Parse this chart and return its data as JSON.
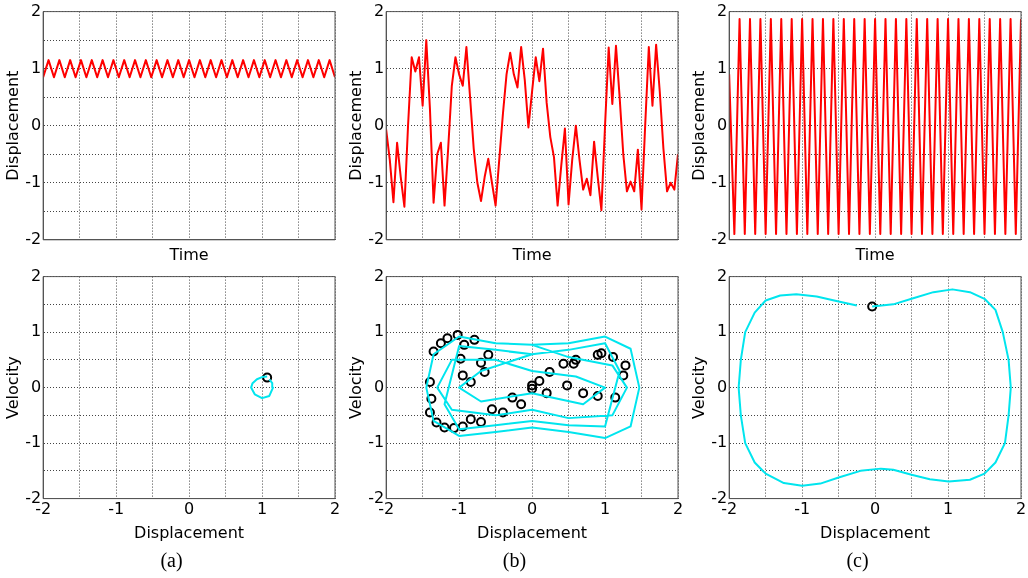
{
  "chart_data": [
    {
      "type": "line",
      "xlabel": "Time",
      "ylabel": "Displacement",
      "categories": [
        null,
        null,
        null,
        null,
        null,
        null,
        null,
        null,
        null,
        null,
        null,
        null,
        null,
        null,
        null,
        null,
        null,
        null,
        null,
        null,
        null,
        null,
        null,
        null,
        null,
        null,
        null,
        null,
        null,
        null,
        null,
        null,
        null,
        null,
        null,
        null,
        null,
        null,
        null,
        null,
        null,
        null,
        null,
        null,
        null,
        null,
        null,
        null,
        null,
        null,
        null,
        null,
        null,
        null,
        null
      ],
      "ylim": [
        -2,
        2
      ],
      "yticks": [
        -2,
        {
          "value": -1.5,
          "label": null
        },
        -1,
        {
          "value": -0.5,
          "label": null
        },
        0,
        {
          "value": 0.5,
          "label": null
        },
        1,
        {
          "value": 1.5,
          "label": null
        },
        2
      ],
      "grid": true,
      "tick_labels": "y",
      "series": [
        {
          "color": "#ff0000",
          "values": [
            0.85,
            1.15,
            0.85,
            1.15,
            0.85,
            1.15,
            0.85,
            1.15,
            0.85,
            1.15,
            0.85,
            1.15,
            0.85,
            1.15,
            0.85,
            1.15,
            0.85,
            1.15,
            0.85,
            1.15,
            0.85,
            1.15,
            0.85,
            1.15,
            0.85,
            1.15,
            0.85,
            1.15,
            0.85,
            1.15,
            0.85,
            1.15,
            0.85,
            1.15,
            0.85,
            1.15,
            0.85,
            1.15,
            0.85,
            1.15,
            0.85,
            1.15,
            0.85,
            1.15,
            0.85,
            1.15,
            0.85,
            1.15,
            0.85,
            1.15,
            0.85,
            1.15,
            0.85,
            1.15,
            0.85
          ]
        }
      ]
    },
    {
      "type": "line",
      "xlabel": "Time",
      "ylabel": "Displacement",
      "categories": [
        null,
        null,
        null,
        null,
        null,
        null,
        null,
        null,
        null,
        null,
        null,
        null,
        null,
        null,
        null,
        null,
        null,
        null,
        null,
        null,
        null,
        null,
        null,
        null,
        null,
        null,
        null,
        null,
        null,
        null,
        null,
        null,
        null,
        null,
        null,
        null,
        null,
        null,
        null,
        null,
        null,
        null,
        null,
        null,
        null,
        null,
        null,
        null,
        null,
        null,
        null,
        null,
        null,
        null,
        null,
        null,
        null,
        null,
        null,
        null,
        null,
        null,
        null,
        null,
        null,
        null,
        null,
        null,
        null,
        null,
        null,
        null,
        null,
        null,
        null,
        null,
        null,
        null,
        null,
        null,
        null
      ],
      "ylim": [
        -2,
        2
      ],
      "yticks": [
        -2,
        {
          "value": -1.5,
          "label": null
        },
        -1,
        {
          "value": -0.5,
          "label": null
        },
        0,
        {
          "value": 0.5,
          "label": null
        },
        1,
        {
          "value": 1.5,
          "label": null
        },
        2
      ],
      "grid": true,
      "tick_labels": "y",
      "series": [
        {
          "color": "#ff0000",
          "values": [
            -0.07,
            -0.6,
            -1.34,
            -0.3,
            -0.9,
            -1.42,
            0.0,
            1.2,
            0.95,
            1.2,
            0.35,
            1.5,
            0.3,
            -1.35,
            -0.5,
            -0.3,
            -1.4,
            -0.4,
            0.7,
            1.2,
            0.9,
            0.7,
            1.38,
            0.5,
            -0.4,
            -1.0,
            -1.32,
            -0.9,
            -0.58,
            -1.0,
            -1.4,
            -0.6,
            0.2,
            0.9,
            1.28,
            0.9,
            0.67,
            1.38,
            0.8,
            -0.03,
            0.6,
            1.2,
            0.78,
            1.35,
            0.4,
            -0.2,
            -0.55,
            -1.4,
            -0.7,
            -0.05,
            -1.38,
            -0.6,
            0.0,
            -0.6,
            -1.12,
            -0.93,
            -1.22,
            -0.28,
            -0.9,
            -1.48,
            0.0,
            1.37,
            0.38,
            1.4,
            0.5,
            -0.5,
            -1.15,
            -0.98,
            -1.15,
            -0.42,
            -1.47,
            0.0,
            1.38,
            0.35,
            1.42,
            0.6,
            -0.4,
            -1.15,
            -1.0,
            -1.12,
            -0.5
          ]
        }
      ]
    },
    {
      "type": "line",
      "xlabel": "Time",
      "ylabel": "Displacement",
      "categories": [
        null,
        null,
        null,
        null,
        null,
        null,
        null,
        null,
        null,
        null,
        null,
        null,
        null,
        null,
        null,
        null,
        null,
        null,
        null,
        null,
        null,
        null,
        null,
        null,
        null,
        null,
        null,
        null,
        null,
        null,
        null,
        null,
        null,
        null,
        null,
        null,
        null,
        null,
        null,
        null,
        null,
        null,
        null,
        null,
        null,
        null,
        null,
        null,
        null,
        null,
        null,
        null,
        null,
        null,
        null,
        null,
        null
      ],
      "ylim": [
        -2,
        2
      ],
      "yticks": [
        -2,
        {
          "value": -1.5,
          "label": null
        },
        -1,
        {
          "value": -0.5,
          "label": null
        },
        0,
        {
          "value": 0.5,
          "label": null
        },
        1,
        {
          "value": 1.5,
          "label": null
        },
        2
      ],
      "grid": true,
      "tick_labels": "y",
      "series": [
        {
          "color": "#ff0000",
          "values": [
            0.9,
            -1.9,
            1.87,
            -1.9,
            1.87,
            -1.9,
            1.87,
            -1.9,
            1.87,
            -1.9,
            1.87,
            -1.9,
            1.87,
            -1.9,
            1.87,
            -1.9,
            1.87,
            -1.9,
            1.87,
            -1.9,
            1.87,
            -1.9,
            1.87,
            -1.9,
            1.87,
            -1.9,
            1.87,
            -1.9,
            1.87,
            -1.9,
            1.87,
            -1.9,
            1.87,
            -1.9,
            1.87,
            -1.9,
            1.87,
            -1.9,
            1.87,
            -1.9,
            1.87,
            -1.9,
            1.87,
            -1.9,
            1.87,
            -1.9,
            1.87,
            -1.9,
            1.87,
            -1.9,
            1.87,
            -1.9,
            1.87,
            -1.9,
            1.87,
            -1.9,
            1.87
          ]
        }
      ]
    },
    {
      "type": "line",
      "xlabel": "Displacement",
      "ylabel": "Velocity",
      "xlim": [
        -2,
        2
      ],
      "xticks": [
        -2,
        {
          "value": -1.5,
          "label": null
        },
        -1,
        {
          "value": -0.5,
          "label": null
        },
        0,
        {
          "value": 0.5,
          "label": null
        },
        1,
        {
          "value": 1.5,
          "label": null
        },
        2
      ],
      "ylim": [
        -2,
        2
      ],
      "yticks": [
        -2,
        {
          "value": -1.5,
          "label": null
        },
        -1,
        {
          "value": -0.5,
          "label": null
        },
        0,
        {
          "value": 0.5,
          "label": null
        },
        1,
        {
          "value": 1.5,
          "label": null
        },
        2
      ],
      "grid": true,
      "annotations": [
        "(a)"
      ],
      "series": [
        {
          "type": "line",
          "color": "#00e5ee",
          "marker": "none",
          "x": [
            1.07,
            1.0,
            0.93,
            0.87,
            0.85,
            0.9,
            1.0,
            1.1,
            1.15,
            1.14,
            1.1
          ],
          "values": [
            0.2,
            0.19,
            0.15,
            0.08,
            0.0,
            -0.12,
            -0.19,
            -0.15,
            0.0,
            0.08,
            0.15
          ]
        },
        {
          "type": "scatter",
          "color": "#000000",
          "marker": "circle",
          "x": [
            1.07
          ],
          "values": [
            0.18
          ]
        }
      ]
    },
    {
      "type": "line",
      "xlabel": "Displacement",
      "ylabel": "Velocity",
      "xlim": [
        -2,
        2
      ],
      "xticks": [
        -2,
        {
          "value": -1.5,
          "label": null
        },
        -1,
        {
          "value": -0.5,
          "label": null
        },
        0,
        {
          "value": 0.5,
          "label": null
        },
        1,
        {
          "value": 1.5,
          "label": null
        },
        2
      ],
      "ylim": [
        -2,
        2
      ],
      "yticks": [
        -2,
        {
          "value": -1.5,
          "label": null
        },
        -1,
        {
          "value": -0.5,
          "label": null
        },
        0,
        {
          "value": 0.5,
          "label": null
        },
        1,
        {
          "value": 1.5,
          "label": null
        },
        2
      ],
      "grid": true,
      "annotations": [
        "(b)"
      ],
      "series": [
        {
          "type": "line",
          "color": "#00e5ee",
          "marker": "none",
          "x": [
            0,
            0.5,
            1.0,
            1.35,
            1.47,
            1.35,
            1.0,
            0.5,
            0,
            -0.5,
            -1.0,
            -1.35,
            -1.45,
            -1.35,
            -1.0,
            -0.5,
            0,
            0.5,
            1.1,
            1.3,
            1.1,
            0.5,
            0,
            -0.5,
            -1.1,
            -1.3,
            -1.1,
            -0.5,
            0,
            0.6,
            1.0,
            0.7,
            0,
            -0.7,
            -1.0,
            -0.7,
            0,
            0.5,
            1.0,
            1.2,
            1.0,
            0.5,
            0,
            -0.5,
            -1.0,
            -1.2,
            -1.0,
            -0.5,
            0
          ],
          "values": [
            0.77,
            0.8,
            0.92,
            0.7,
            0,
            -0.7,
            -0.91,
            -0.8,
            -0.72,
            -0.8,
            -0.87,
            -0.6,
            0,
            0.6,
            0.92,
            0.8,
            0.77,
            0.55,
            0.4,
            0,
            -0.5,
            -0.55,
            -0.4,
            -0.5,
            -0.4,
            0,
            0.5,
            0.5,
            0.3,
            0.2,
            0,
            -0.3,
            -0.1,
            -0.25,
            0,
            0.3,
            0.6,
            0.68,
            0.8,
            0.3,
            -0.7,
            -0.68,
            -0.6,
            -0.68,
            -0.75,
            -0.3,
            0.75,
            0.68,
            0.6
          ]
        },
        {
          "type": "scatter",
          "color": "#000000",
          "marker": "circle",
          "x": [
            0.43,
            0.95,
            1.11,
            1.25,
            1.14,
            0.9,
            0.48,
            0,
            -0.27,
            -0.55,
            -0.84,
            -1.07,
            -1.31,
            -1.4,
            -1.4,
            -1.35,
            -1.16,
            -1.02,
            -0.79,
            -0.6,
            -0.65,
            -0.84,
            -0.95,
            -0.98,
            -0.93,
            0,
            0.24,
            0.57,
            0.9,
            1.28,
            0.7,
            0.2,
            -0.15,
            -0.4,
            -0.7,
            -0.95,
            -1.2,
            -1.38,
            -1.25,
            -0.7,
            0.1,
            0.6
          ],
          "values": [
            0.43,
            0.62,
            0.55,
            0.22,
            -0.18,
            -0.15,
            0.04,
            -0.02,
            -0.18,
            -0.39,
            -0.57,
            -0.73,
            -0.63,
            -0.45,
            0.1,
            0.65,
            0.89,
            0.95,
            0.86,
            0.59,
            0.28,
            0.1,
            0.22,
            0.52,
            0.77,
            0.04,
            0.28,
            0.43,
            0.59,
            0.4,
            -0.1,
            -0.1,
            -0.3,
            -0.45,
            -0.62,
            -0.7,
            -0.72,
            -0.2,
            0.8,
            0.45,
            0.12,
            0.5
          ]
        }
      ]
    },
    {
      "type": "line",
      "xlabel": "Displacement",
      "ylabel": "Velocity",
      "xlim": [
        -2,
        2
      ],
      "xticks": [
        -2,
        {
          "value": -1.5,
          "label": null
        },
        -1,
        {
          "value": -0.5,
          "label": null
        },
        0,
        {
          "value": 0.5,
          "label": null
        },
        1,
        {
          "value": 1.5,
          "label": null
        },
        2
      ],
      "ylim": [
        -2,
        2
      ],
      "yticks": [
        -2,
        {
          "value": -1.5,
          "label": null
        },
        -1,
        {
          "value": -0.5,
          "label": null
        },
        0,
        {
          "value": 0.5,
          "label": null
        },
        1,
        {
          "value": 1.5,
          "label": null
        },
        2
      ],
      "grid": true,
      "annotations": [
        "(c)"
      ],
      "series": [
        {
          "type": "line",
          "color": "#00e5ee",
          "marker": "none",
          "x": [
            -0.04,
            0.25,
            0.5,
            0.8,
            1.06,
            1.3,
            1.5,
            1.65,
            1.75,
            1.83,
            1.86,
            1.83,
            1.78,
            1.65,
            1.5,
            1.3,
            1.01,
            0.75,
            0.5,
            0.25,
            0.08,
            -0.2,
            -0.5,
            -0.75,
            -1.0,
            -1.25,
            -1.5,
            -1.65,
            -1.78,
            -1.84,
            -1.87,
            -1.84,
            -1.78,
            -1.65,
            -1.5,
            -1.3,
            -1.08,
            -0.8,
            -0.5,
            -0.25
          ],
          "values": [
            1.46,
            1.5,
            1.6,
            1.72,
            1.77,
            1.72,
            1.6,
            1.4,
            1.0,
            0.5,
            0,
            -0.5,
            -1.0,
            -1.35,
            -1.55,
            -1.66,
            -1.69,
            -1.65,
            -1.57,
            -1.48,
            -1.46,
            -1.5,
            -1.62,
            -1.73,
            -1.77,
            -1.72,
            -1.55,
            -1.35,
            -1.0,
            -0.5,
            0,
            0.5,
            1.0,
            1.35,
            1.57,
            1.66,
            1.68,
            1.64,
            1.55,
            1.48
          ]
        },
        {
          "type": "scatter",
          "color": "#000000",
          "marker": "circle",
          "x": [
            -0.04
          ],
          "values": [
            1.46
          ]
        }
      ]
    }
  ]
}
